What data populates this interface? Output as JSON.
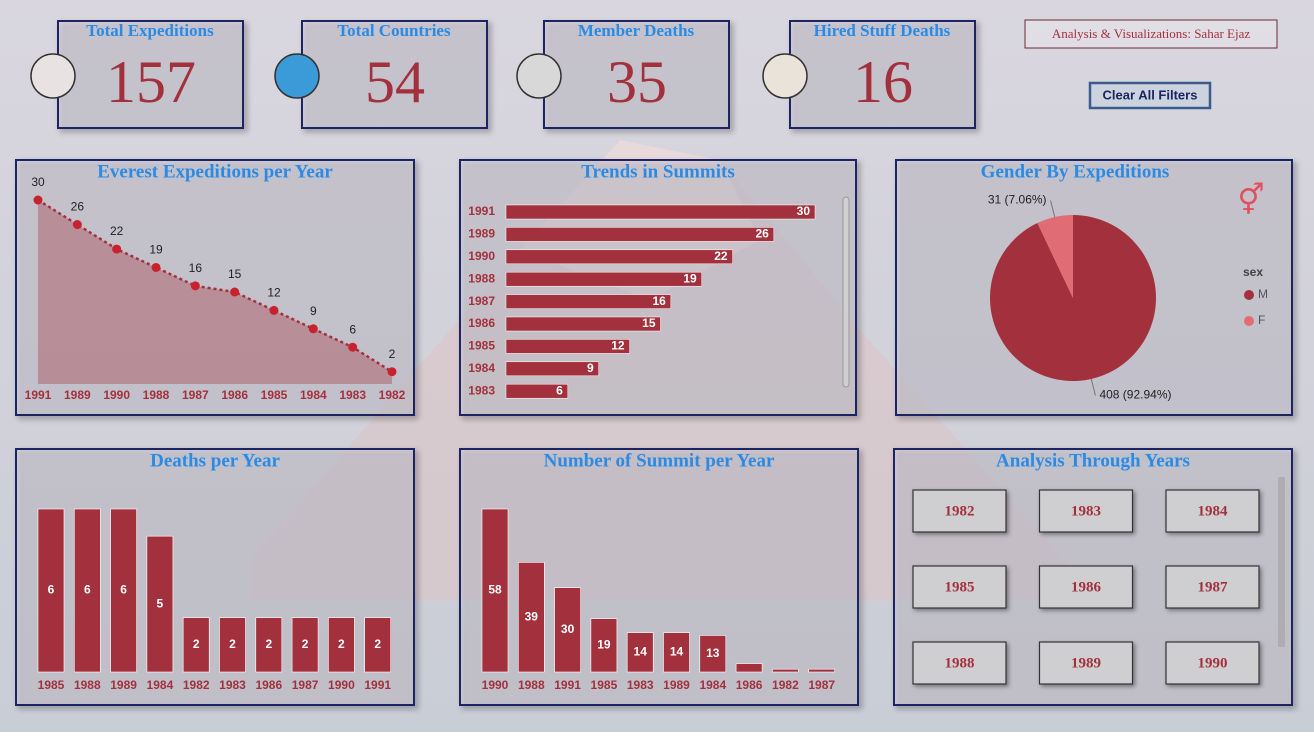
{
  "kpis": [
    {
      "label": "Total Expeditions",
      "value": 157
    },
    {
      "label": "Total Countries",
      "value": 54
    },
    {
      "label": "Member Deaths",
      "value": 35
    },
    {
      "label": "Hired Stuff Deaths",
      "value": 16
    }
  ],
  "credit": "Analysis & Visualizations: Sahar Ejaz",
  "clear_button": "Clear All Filters",
  "chart_data": [
    {
      "type": "line",
      "title": "Everest Expeditions per Year",
      "categories": [
        "1991",
        "1989",
        "1990",
        "1988",
        "1987",
        "1986",
        "1985",
        "1984",
        "1983",
        "1982"
      ],
      "values": [
        30,
        26,
        22,
        19,
        16,
        15,
        12,
        9,
        6,
        2
      ],
      "color": "#a3313d"
    },
    {
      "type": "hbar",
      "title": "Trends in Summits",
      "categories": [
        "1991",
        "1989",
        "1990",
        "1988",
        "1987",
        "1986",
        "1985",
        "1984",
        "1983"
      ],
      "values": [
        30,
        26,
        22,
        19,
        16,
        15,
        12,
        9,
        6
      ],
      "color": "#a3313d"
    },
    {
      "type": "pie",
      "title": "Gender By Expeditions",
      "legend_title": "sex",
      "categories": [
        "M",
        "F"
      ],
      "values": [
        408,
        31
      ],
      "value_labels": [
        "408 (92.94%)",
        "31 (7.06%)"
      ],
      "colors": [
        "#a3313d",
        "#e06c75"
      ]
    },
    {
      "type": "bar",
      "title": "Deaths per Year",
      "categories": [
        "1985",
        "1988",
        "1989",
        "1984",
        "1982",
        "1983",
        "1986",
        "1987",
        "1990",
        "1991"
      ],
      "values": [
        6,
        6,
        6,
        5,
        2,
        2,
        2,
        2,
        2,
        2
      ],
      "color": "#a3313d"
    },
    {
      "type": "bar",
      "title": "Number of Summit per Year",
      "categories": [
        "1990",
        "1988",
        "1991",
        "1985",
        "1983",
        "1989",
        "1984",
        "1986",
        "1982",
        "1987"
      ],
      "values": [
        58,
        39,
        30,
        19,
        14,
        14,
        13,
        3,
        1,
        1
      ],
      "value_labels": [
        "58",
        "39",
        "30",
        "19",
        "14",
        "14",
        "13",
        null,
        null,
        null
      ],
      "color": "#a3313d"
    }
  ],
  "slicer": {
    "title": "Analysis Through Years",
    "items": [
      "1982",
      "1983",
      "1984",
      "1985",
      "1986",
      "1987",
      "1988",
      "1989",
      "1990"
    ]
  }
}
